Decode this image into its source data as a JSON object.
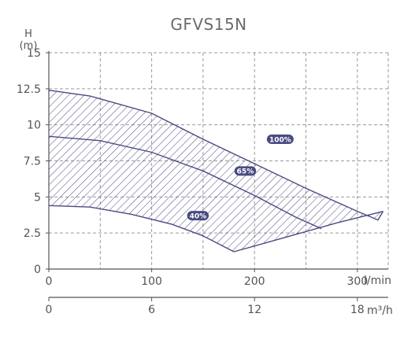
{
  "chart_data": {
    "type": "area",
    "title": "GFVS15N",
    "ylabel_line1": "H",
    "ylabel_line2": "(m)",
    "xlabel": "l/min",
    "x2label": "m³/h",
    "xlim": [
      0,
      330
    ],
    "ylim": [
      0,
      15
    ],
    "x_grid": [
      0,
      50,
      100,
      150,
      200,
      250,
      300,
      330
    ],
    "y_ticks": [
      0,
      2.5,
      5,
      7.5,
      10,
      12.5,
      15
    ],
    "y_tick_labels": [
      "0",
      "2.5",
      "5",
      "7.5",
      "10",
      "12.5",
      "15"
    ],
    "x_ticks": [
      0,
      100,
      200,
      300
    ],
    "x_tick_labels": [
      "0",
      "100",
      "200",
      "300"
    ],
    "x2_ticks": [
      0,
      100,
      200,
      300
    ],
    "x2_tick_labels": [
      "0",
      "6",
      "12",
      "18"
    ],
    "grid": true,
    "hatch": true,
    "colors": {
      "curve": "#4a4a82",
      "badge": "#4a4a82",
      "grid": "#9a9a9a",
      "axis": "#555555",
      "text": "#555555"
    },
    "series": [
      {
        "name": "100%",
        "points": [
          [
            0,
            12.4
          ],
          [
            40,
            12.0
          ],
          [
            100,
            10.8
          ],
          [
            150,
            9.0
          ],
          [
            200,
            7.3
          ],
          [
            250,
            5.6
          ],
          [
            300,
            4.0
          ],
          [
            320,
            3.4
          ],
          [
            325,
            4.0
          ]
        ]
      },
      {
        "name": "65%",
        "points": [
          [
            0,
            9.2
          ],
          [
            50,
            8.9
          ],
          [
            100,
            8.1
          ],
          [
            150,
            6.8
          ],
          [
            200,
            5.1
          ],
          [
            240,
            3.6
          ],
          [
            265,
            2.8
          ]
        ]
      },
      {
        "name": "40%",
        "points": [
          [
            0,
            4.4
          ],
          [
            40,
            4.3
          ],
          [
            80,
            3.8
          ],
          [
            120,
            3.1
          ],
          [
            150,
            2.3
          ],
          [
            180,
            1.2
          ]
        ]
      }
    ],
    "envelope_bottom": [
      [
        180,
        1.2
      ],
      [
        230,
        2.2
      ],
      [
        280,
        3.2
      ],
      [
        325,
        4.0
      ]
    ],
    "badges": [
      {
        "label": "100%",
        "x": 225,
        "y": 9.0
      },
      {
        "label": "65%",
        "x": 191,
        "y": 6.8
      },
      {
        "label": "40%",
        "x": 145,
        "y": 3.7
      }
    ]
  }
}
